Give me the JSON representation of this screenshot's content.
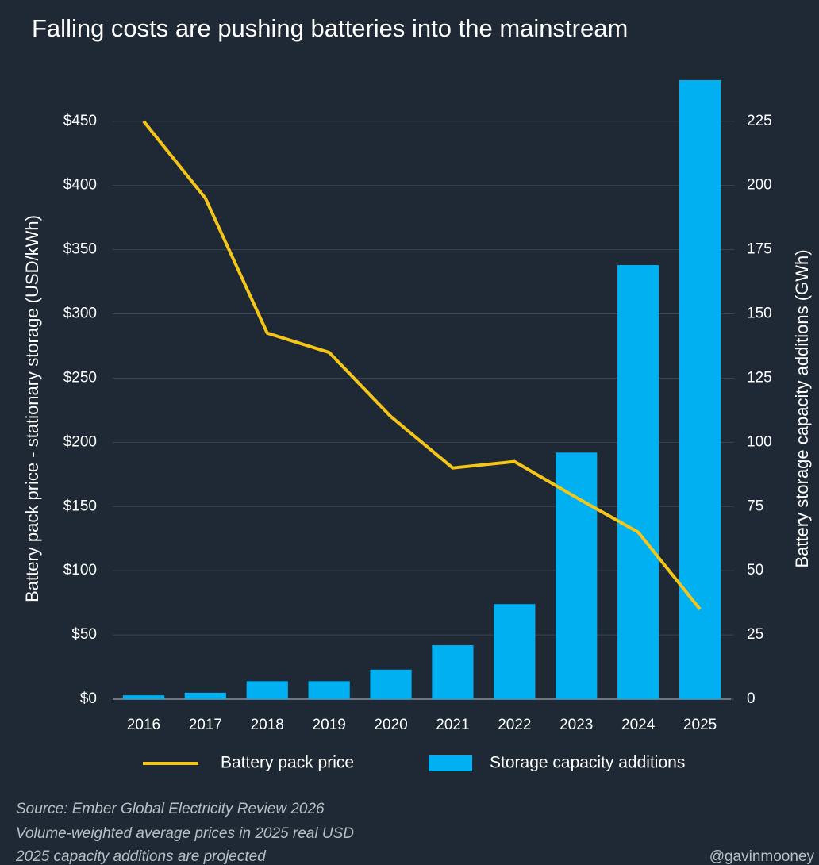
{
  "chart_data": {
    "type": "combo",
    "title": "Falling costs are pushing batteries into the mainstream",
    "categories": [
      "2016",
      "2017",
      "2018",
      "2019",
      "2020",
      "2021",
      "2022",
      "2023",
      "2024",
      "2025"
    ],
    "series": [
      {
        "name": "Battery pack price",
        "type": "line",
        "axis": "y",
        "color": "#f5c518",
        "values": [
          450,
          390,
          285,
          270,
          220,
          180,
          185,
          157,
          130,
          70
        ]
      },
      {
        "name": "Storage capacity additions",
        "type": "bar",
        "axis": "y2",
        "color": "#00b0f0",
        "values": [
          1.5,
          2.5,
          7,
          7,
          11.5,
          21,
          37,
          96,
          169,
          241
        ]
      }
    ],
    "ylabel": "Battery pack price - stationary storage (USD/kWh)",
    "y2label": "Battery storage capacity additions (GWh)",
    "ylim": [
      0,
      490
    ],
    "yticks": [
      {
        "value": 0,
        "label": "$0"
      },
      {
        "value": 50,
        "label": "$50"
      },
      {
        "value": 100,
        "label": "$100"
      },
      {
        "value": 150,
        "label": "$150"
      },
      {
        "value": 200,
        "label": "$200"
      },
      {
        "value": 250,
        "label": "$250"
      },
      {
        "value": 300,
        "label": "$300"
      },
      {
        "value": 350,
        "label": "$350"
      },
      {
        "value": 400,
        "label": "$400"
      },
      {
        "value": 450,
        "label": "$450"
      }
    ],
    "y2lim": [
      0,
      245
    ],
    "y2ticks": [
      0,
      25,
      50,
      75,
      100,
      125,
      150,
      175,
      200,
      225
    ],
    "grid": true,
    "legend": "bottom",
    "notes": [
      "Source: Ember Global Electricity Review 2026",
      "Volume-weighted average prices in 2025 real USD",
      "2025 capacity additions are projected"
    ],
    "credit": "@gavinmooney"
  }
}
